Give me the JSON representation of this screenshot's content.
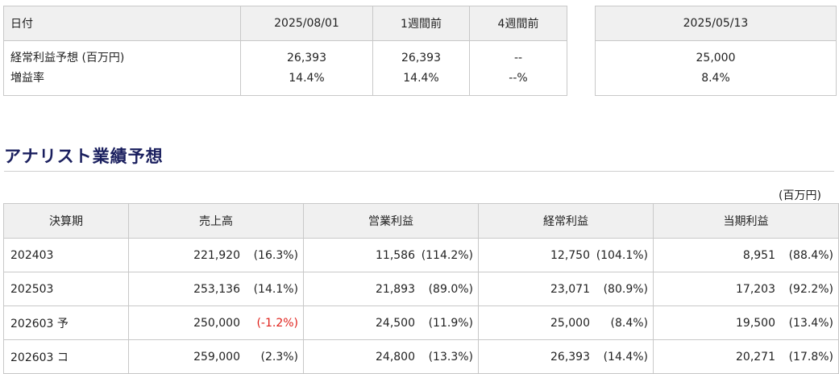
{
  "consensus": {
    "headers": [
      "日付",
      "2025/08/01",
      "1週間前",
      "4週間前"
    ],
    "rows": [
      {
        "label": "経常利益予想 (百万円)",
        "values": [
          "26,393",
          "26,393",
          "--"
        ]
      },
      {
        "label": "増益率",
        "values": [
          "14.4%",
          "14.4%",
          "--%"
        ]
      }
    ]
  },
  "past_consensus": {
    "date": "2025/05/13",
    "profit": "25,000",
    "growth": "8.4%"
  },
  "section": {
    "title": "アナリスト業績予想",
    "unit": "(百万円)"
  },
  "forecast": {
    "headers": [
      "決算期",
      "売上高",
      "営業利益",
      "経常利益",
      "当期利益"
    ],
    "rows": [
      {
        "period": "202403",
        "sales": "221,920",
        "sales_pct": "(16.3%)",
        "op": "11,586",
        "op_pct": "(114.2%)",
        "ord": "12,750",
        "ord_pct": "(104.1%)",
        "net": "8,951",
        "net_pct": "(88.4%)"
      },
      {
        "period": "202503",
        "sales": "253,136",
        "sales_pct": "(14.1%)",
        "op": "21,893",
        "op_pct": "(89.0%)",
        "ord": "23,071",
        "ord_pct": "(80.9%)",
        "net": "17,203",
        "net_pct": "(92.2%)"
      },
      {
        "period": "202603 予",
        "sales": "250,000",
        "sales_pct": "(-1.2%)",
        "op": "24,500",
        "op_pct": "(11.9%)",
        "ord": "25,000",
        "ord_pct": "(8.4%)",
        "net": "19,500",
        "net_pct": "(13.4%)"
      },
      {
        "period": "202603 コ",
        "sales": "259,000",
        "sales_pct": "(2.3%)",
        "op": "24,800",
        "op_pct": "(13.3%)",
        "ord": "26,393",
        "ord_pct": "(14.4%)",
        "net": "20,271",
        "net_pct": "(17.8%)"
      }
    ]
  },
  "colors": {
    "header_bg": "#f0f0f0",
    "border": "#c8c8c8",
    "title": "#1a1f5e",
    "negative": "#e0201a"
  }
}
